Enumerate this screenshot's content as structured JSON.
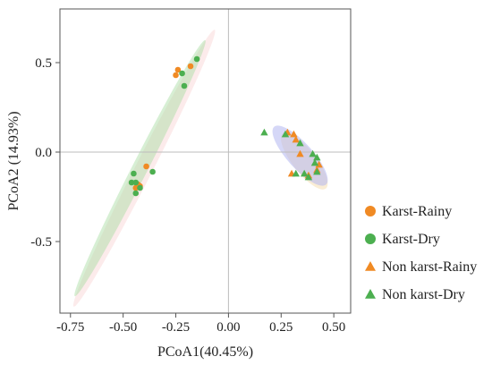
{
  "chart_data": {
    "type": "scatter",
    "xlabel": "PCoA1(40.45%)",
    "ylabel": "PCoA2 (14.93%)",
    "xlim": [
      -0.8,
      0.58
    ],
    "ylim": [
      -0.9,
      0.8
    ],
    "xticks": [
      -0.75,
      -0.5,
      -0.25,
      0.0,
      0.25,
      0.5
    ],
    "xtick_labels": [
      "-0.75",
      "-0.50",
      "-0.25",
      "0.00",
      "0.25",
      "0.50"
    ],
    "yticks": [
      -0.5,
      0.0,
      0.5
    ],
    "ytick_labels": [
      "-0.5",
      "0.0",
      "0.5"
    ],
    "reference_lines": {
      "x": 0.0,
      "y": 0.0
    },
    "grid": false,
    "legend_position": "right",
    "series": [
      {
        "name": "Karst-Rainy",
        "marker": "circle",
        "color": "#F08A24",
        "points": [
          {
            "x": -0.25,
            "y": 0.43
          },
          {
            "x": -0.24,
            "y": 0.46
          },
          {
            "x": -0.18,
            "y": 0.48
          },
          {
            "x": -0.39,
            "y": -0.08
          },
          {
            "x": -0.44,
            "y": -0.2
          },
          {
            "x": -0.43,
            "y": -0.18
          },
          {
            "x": -0.42,
            "y": -0.19
          }
        ]
      },
      {
        "name": "Karst-Dry",
        "marker": "circle",
        "color": "#4CAF50",
        "points": [
          {
            "x": -0.15,
            "y": 0.52
          },
          {
            "x": -0.22,
            "y": 0.44
          },
          {
            "x": -0.21,
            "y": 0.37
          },
          {
            "x": -0.36,
            "y": -0.11
          },
          {
            "x": -0.45,
            "y": -0.12
          },
          {
            "x": -0.46,
            "y": -0.17
          },
          {
            "x": -0.44,
            "y": -0.17
          },
          {
            "x": -0.42,
            "y": -0.2
          },
          {
            "x": -0.44,
            "y": -0.23
          }
        ]
      },
      {
        "name": "Non karst-Rainy",
        "marker": "triangle",
        "color": "#F08A24",
        "points": [
          {
            "x": 0.28,
            "y": 0.11
          },
          {
            "x": 0.31,
            "y": 0.1
          },
          {
            "x": 0.32,
            "y": 0.07
          },
          {
            "x": 0.34,
            "y": -0.01
          },
          {
            "x": 0.38,
            "y": -0.13
          },
          {
            "x": 0.42,
            "y": -0.1
          },
          {
            "x": 0.43,
            "y": -0.07
          },
          {
            "x": 0.3,
            "y": -0.12
          }
        ]
      },
      {
        "name": "Non karst-Dry",
        "marker": "triangle",
        "color": "#4CAF50",
        "points": [
          {
            "x": 0.17,
            "y": 0.11
          },
          {
            "x": 0.27,
            "y": 0.1
          },
          {
            "x": 0.34,
            "y": 0.05
          },
          {
            "x": 0.4,
            "y": -0.01
          },
          {
            "x": 0.42,
            "y": -0.03
          },
          {
            "x": 0.41,
            "y": -0.06
          },
          {
            "x": 0.42,
            "y": -0.11
          },
          {
            "x": 0.38,
            "y": -0.14
          },
          {
            "x": 0.36,
            "y": -0.12
          },
          {
            "x": 0.32,
            "y": -0.12
          }
        ]
      }
    ],
    "ellipses": [
      {
        "group": "Karst-Rainy",
        "color": "#F7C6C6",
        "opacity": 0.35,
        "center": [
          -0.4,
          -0.09
        ],
        "rx": 0.8,
        "ry": 0.045,
        "angle_deg": 63
      },
      {
        "group": "Karst-Dry",
        "color": "#A6DBA0",
        "opacity": 0.45,
        "center": [
          -0.42,
          -0.09
        ],
        "rx": 0.74,
        "ry": 0.04,
        "angle_deg": 63
      },
      {
        "group": "Non karst-Rainy",
        "color": "#F5DFB3",
        "opacity": 0.55,
        "center": [
          0.36,
          -0.05
        ],
        "rx": 0.18,
        "ry": 0.06,
        "angle_deg": -52
      },
      {
        "group": "Non karst-Dry",
        "color": "#B3B7F0",
        "opacity": 0.55,
        "center": [
          0.34,
          -0.02
        ],
        "rx": 0.2,
        "ry": 0.065,
        "angle_deg": -48
      }
    ]
  }
}
